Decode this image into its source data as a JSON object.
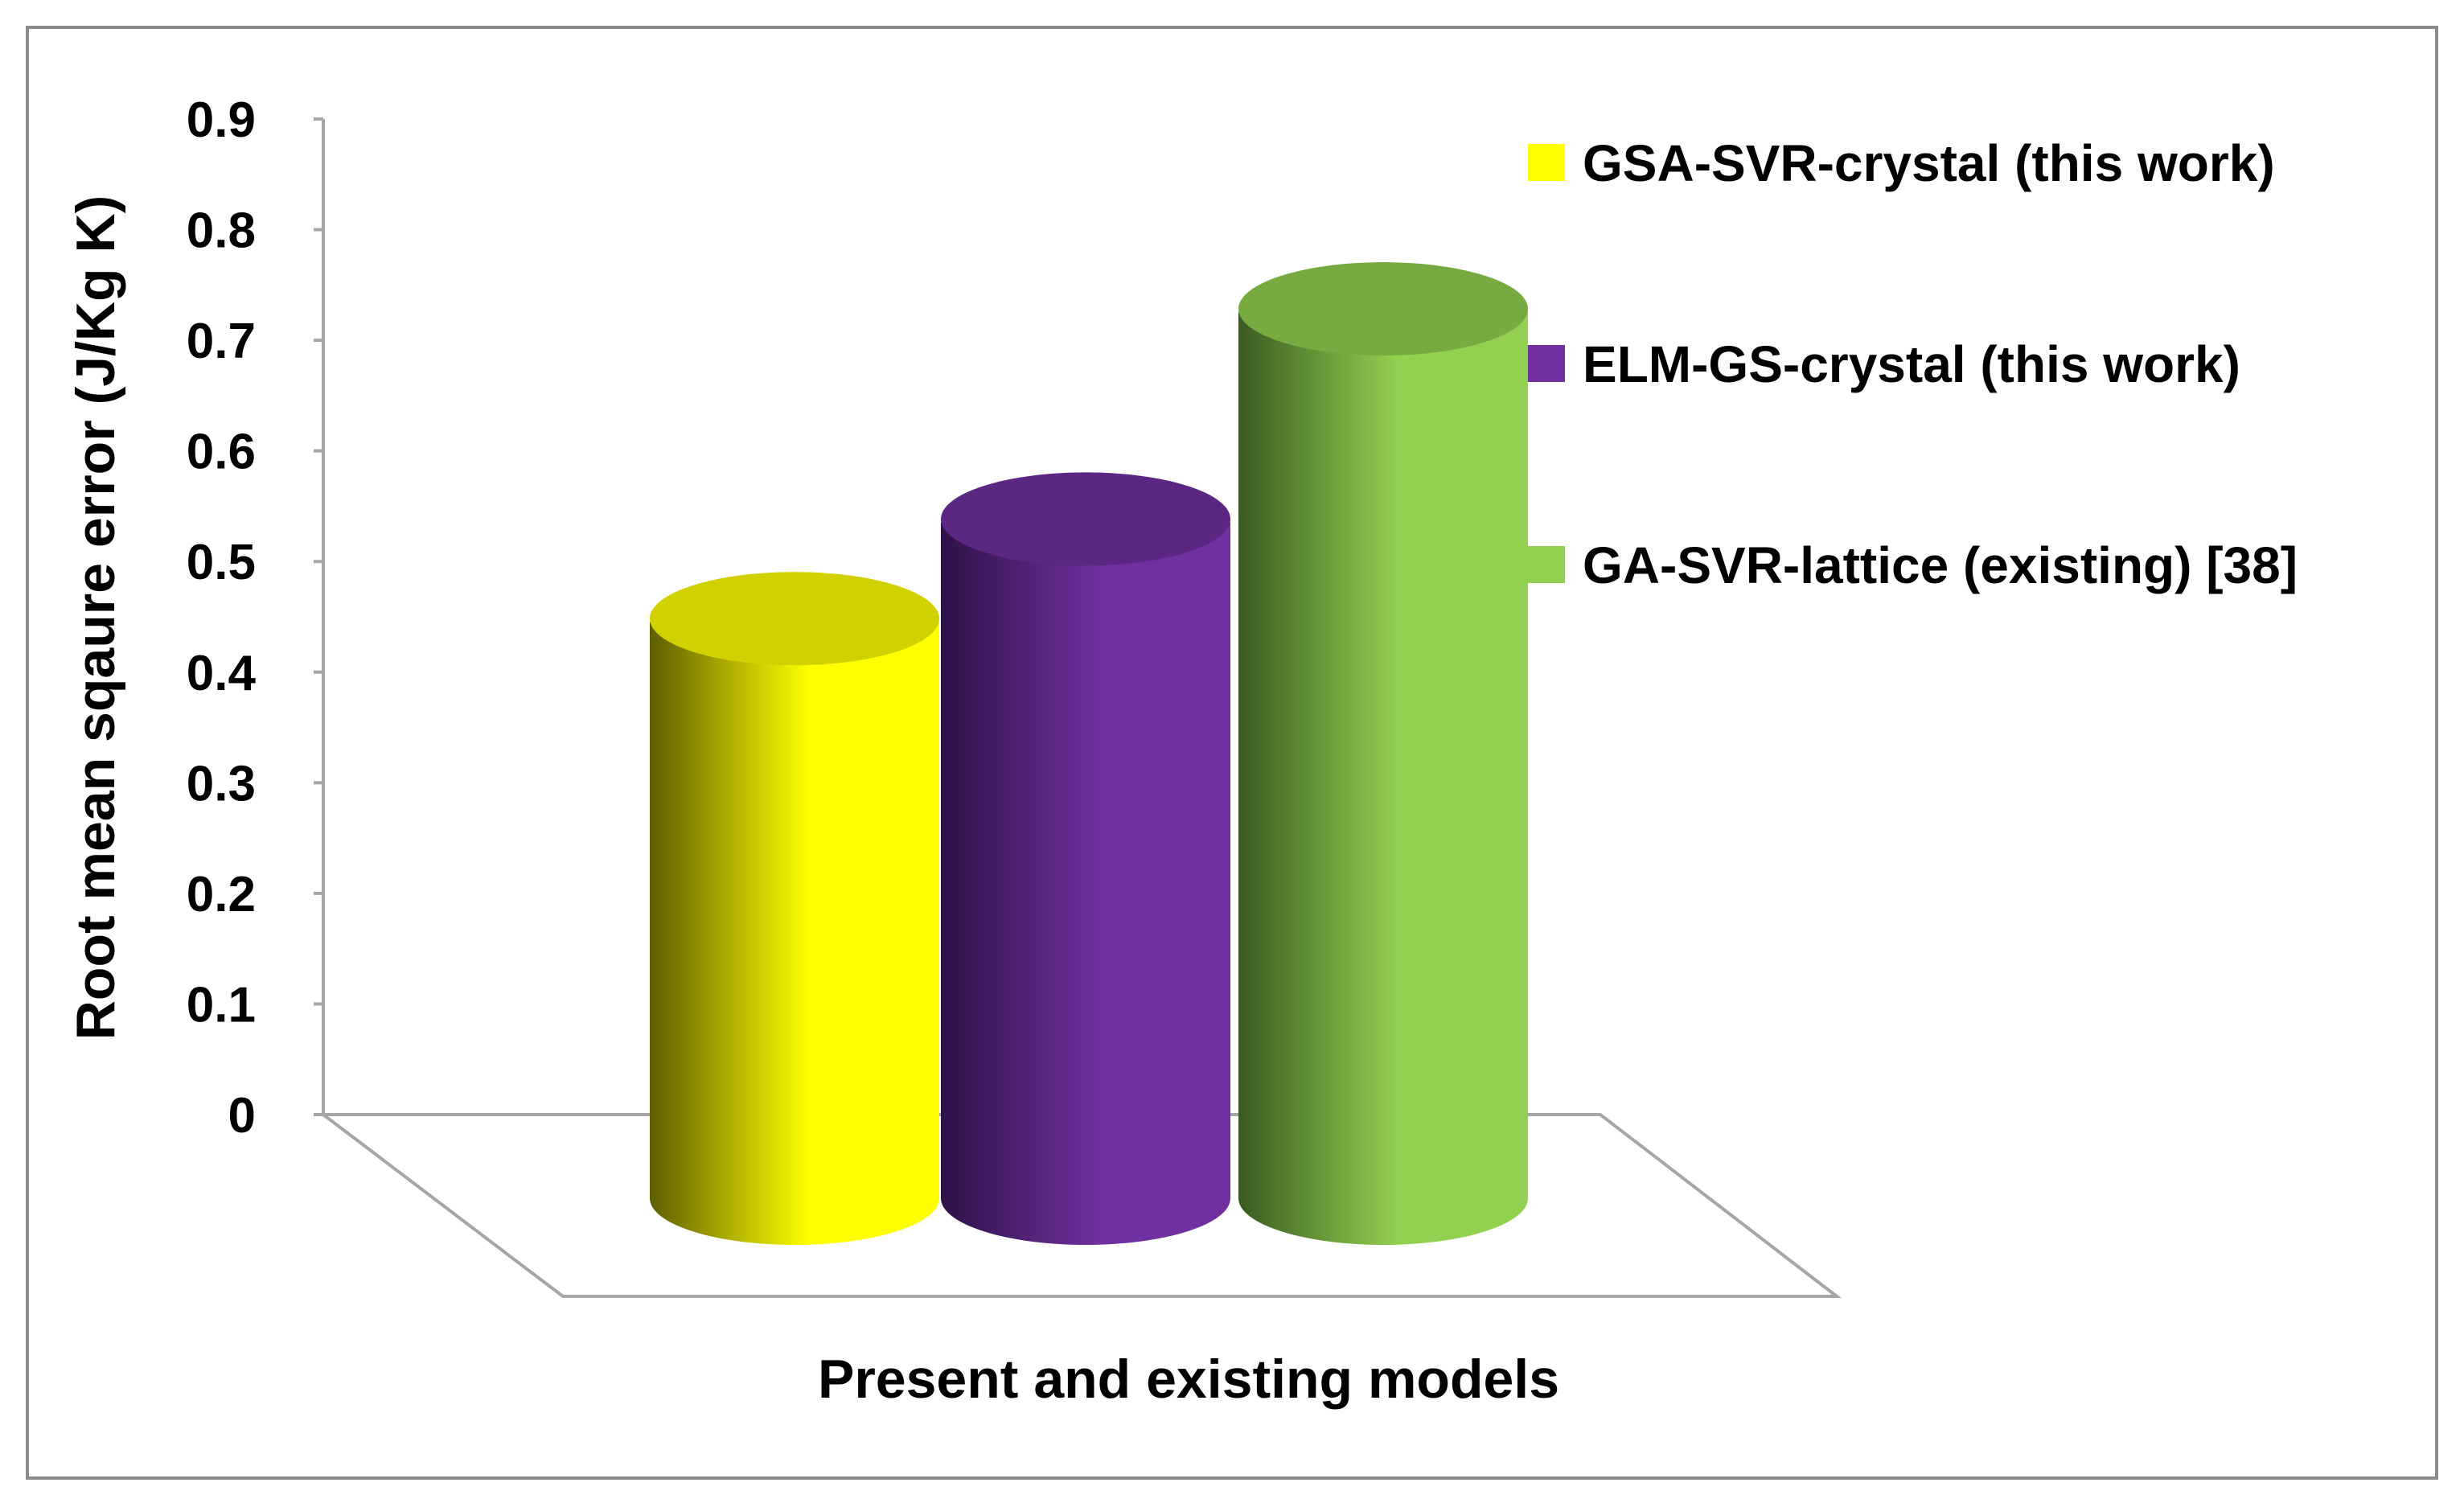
{
  "chart_data": {
    "type": "bar",
    "style": "3d-cylinder",
    "title": "",
    "xlabel": "Present and existing models",
    "ylabel": "Root mean sqaure error (J/Kg K)",
    "ylim": [
      0,
      0.9
    ],
    "yticks": [
      "0",
      "0.1",
      "0.2",
      "0.3",
      "0.4",
      "0.5",
      "0.6",
      "0.7",
      "0.8",
      "0.9"
    ],
    "tick_values": [
      0,
      0.1,
      0.2,
      0.3,
      0.4,
      0.5,
      0.6,
      0.7,
      0.8,
      0.9
    ],
    "grid": false,
    "legend_position": "right",
    "series": [
      {
        "name": "GSA-SVR-crystal (this work)",
        "values": [
          0.54
        ],
        "color": "#FFFF00",
        "dark": "#5E5E00"
      },
      {
        "name": "ELM-GS-crystal (this work)",
        "values": [
          0.63
        ],
        "color": "#7030A0",
        "dark": "#2E1247"
      },
      {
        "name": "GA-SVR-lattice (existing) [38]",
        "values": [
          0.82
        ],
        "color": "#92D050",
        "dark": "#3B5A21"
      }
    ]
  }
}
